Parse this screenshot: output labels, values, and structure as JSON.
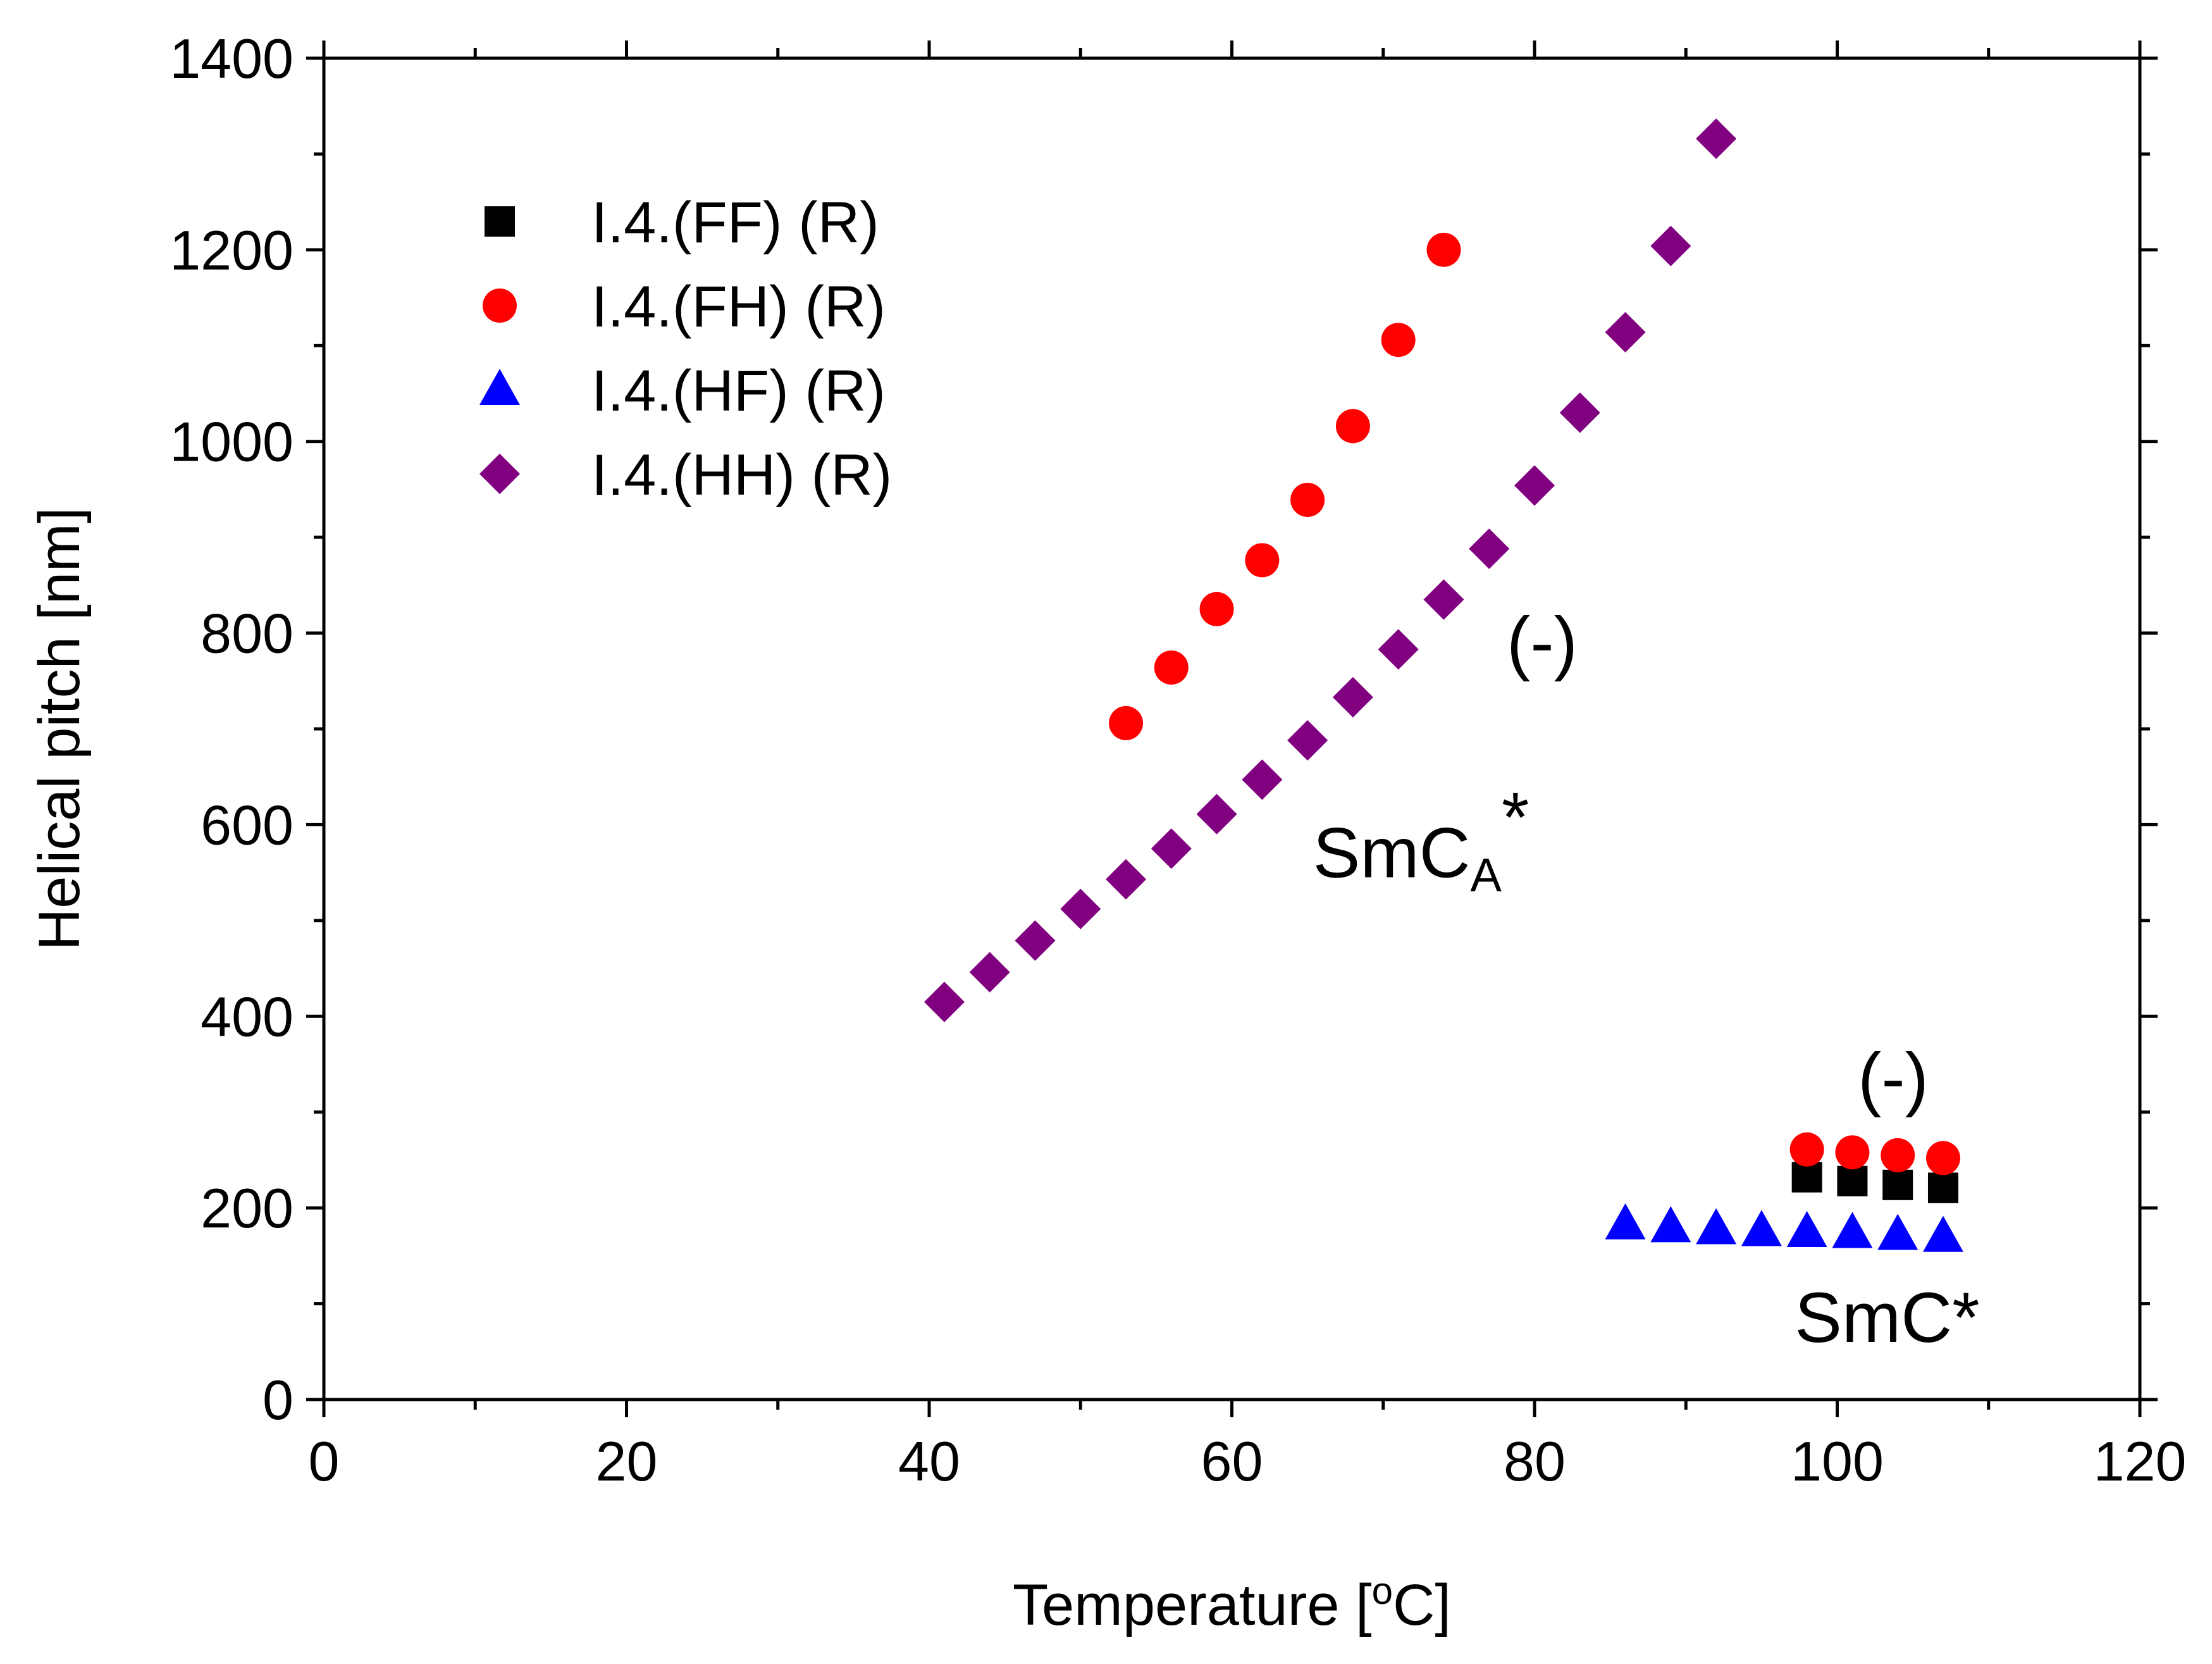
{
  "chart_data": {
    "type": "scatter",
    "title": "",
    "xlabel": "Temperature [°C]",
    "xlabel_parts": {
      "prefix": "Temperature [",
      "sup": "o",
      "suffix": "C]"
    },
    "ylabel": "Helical pitch [nm]",
    "xlim": [
      0,
      120
    ],
    "ylim": [
      0,
      1400
    ],
    "xticks": [
      0,
      20,
      40,
      60,
      80,
      100,
      120
    ],
    "yticks": [
      0,
      200,
      400,
      600,
      800,
      1000,
      1200,
      1400
    ],
    "grid": false,
    "legend_position": "top-left",
    "series": [
      {
        "name": "I.4.(FF) (R)",
        "marker": "square",
        "color": "#000000",
        "x": [
          98,
          101,
          104,
          107
        ],
        "y": [
          232,
          228,
          224,
          221
        ]
      },
      {
        "name": "I.4.(FH) (R)",
        "marker": "circle",
        "color": "#ff0000",
        "x": [
          53,
          56,
          59,
          62,
          65,
          68,
          71,
          74,
          98,
          101,
          104,
          107
        ],
        "y": [
          706,
          764,
          825,
          876,
          939,
          1016,
          1106,
          1200,
          261,
          258,
          255,
          252
        ]
      },
      {
        "name": "I.4.(HF) (R)",
        "marker": "triangle",
        "color": "#0000ff",
        "x": [
          86,
          89,
          92,
          95,
          98,
          101,
          104,
          107
        ],
        "y": [
          183,
          180,
          178,
          176,
          175,
          174,
          172,
          170
        ]
      },
      {
        "name": "I.4.(HH) (R)",
        "marker": "diamond",
        "color": "#800080",
        "x": [
          41,
          44,
          47,
          50,
          53,
          56,
          59,
          62,
          65,
          68,
          71,
          74,
          77,
          80,
          83,
          86,
          89,
          92
        ],
        "y": [
          415,
          446,
          479,
          512,
          543,
          575,
          611,
          647,
          688,
          733,
          783,
          835,
          888,
          954,
          1030,
          1114,
          1204,
          1316
        ]
      }
    ],
    "annotations": [
      {
        "id": "smca",
        "text": "SmC",
        "sub": "A",
        "sup": "*",
        "x": 72.5,
        "y": 545
      },
      {
        "id": "minus1",
        "text": "(-)",
        "x": 80.5,
        "y": 765
      },
      {
        "id": "minus2",
        "text": "(-)",
        "x": 103.7,
        "y": 310
      },
      {
        "id": "smc",
        "text": "SmC*",
        "x": 103.3,
        "y": 60
      }
    ]
  }
}
